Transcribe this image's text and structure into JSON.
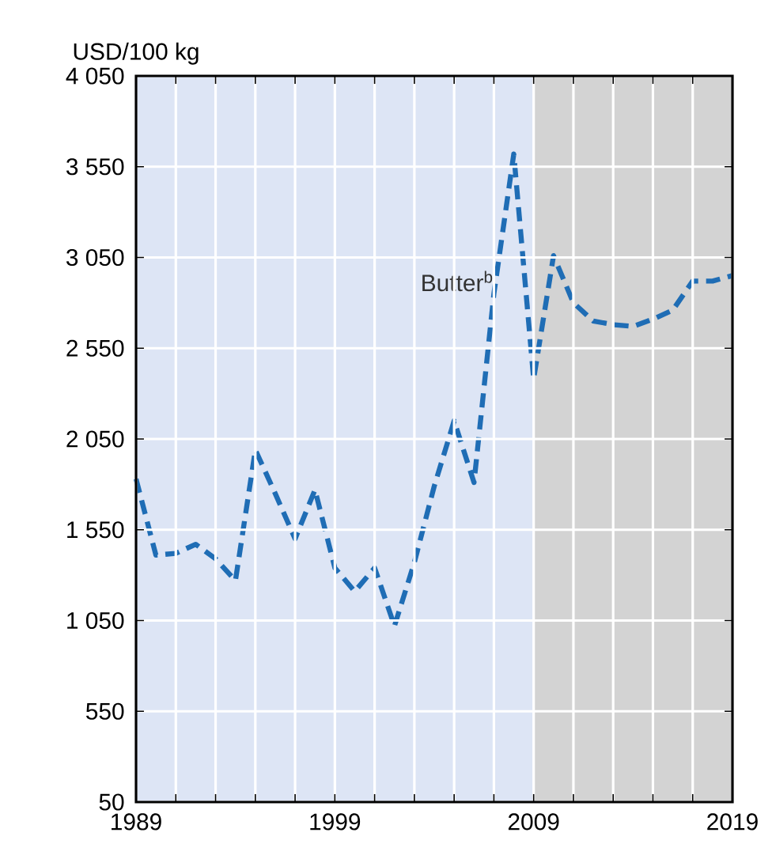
{
  "chart_data": {
    "type": "line",
    "ylabel": "USD/100 kg",
    "x": [
      1989,
      1990,
      1991,
      1992,
      1993,
      1994,
      1995,
      1996,
      1997,
      1998,
      1999,
      2000,
      2001,
      2002,
      2003,
      2004,
      2005,
      2006,
      2007,
      2008,
      2009,
      2010,
      2011,
      2012,
      2013,
      2014,
      2015,
      2016,
      2017,
      2018,
      2019
    ],
    "series": [
      {
        "name": "Butter$^{b}$",
        "color": "#1f6db5",
        "values": [
          1830,
          1410,
          1420,
          1470,
          1390,
          1270,
          1990,
          1750,
          1500,
          1770,
          1340,
          1210,
          1340,
          1020,
          1370,
          1790,
          2150,
          1810,
          2850,
          3620,
          2380,
          3060,
          2800,
          2700,
          2680,
          2670,
          2710,
          2760,
          2920,
          2920,
          2950
        ]
      }
    ],
    "xlim": [
      1989,
      2019
    ],
    "xticks": [
      1989,
      {
        "value": 1991,
        "label": null
      },
      {
        "value": 1993,
        "label": null
      },
      {
        "value": 1995,
        "label": null
      },
      {
        "value": 1997,
        "label": null
      },
      1999,
      {
        "value": 2001,
        "label": null
      },
      {
        "value": 2003,
        "label": null
      },
      {
        "value": 2005,
        "label": null
      },
      {
        "value": 2007,
        "label": null
      },
      2009,
      {
        "value": 2011,
        "label": null
      },
      {
        "value": 2013,
        "label": null
      },
      {
        "value": 2015,
        "label": null
      },
      {
        "value": 2017,
        "label": null
      },
      2019
    ],
    "ylim": [
      50,
      4050
    ],
    "yticks": [
      {
        "value": 50,
        "label": "50"
      },
      {
        "value": 550,
        "label": "550"
      },
      {
        "value": 1050,
        "label": "1 050"
      },
      {
        "value": 1550,
        "label": "1 550"
      },
      {
        "value": 2050,
        "label": "2 050"
      },
      {
        "value": 2550,
        "label": "2 550"
      },
      {
        "value": 3050,
        "label": "3 050"
      },
      {
        "value": 3550,
        "label": "3 550"
      },
      {
        "value": 4050,
        "label": "4 050"
      }
    ],
    "bands": [
      {
        "axis": "x",
        "from": 2009,
        "to": 2019,
        "color": "#d3d3d3"
      }
    ],
    "grid": true,
    "line_style": "dashed",
    "marker": "none"
  }
}
